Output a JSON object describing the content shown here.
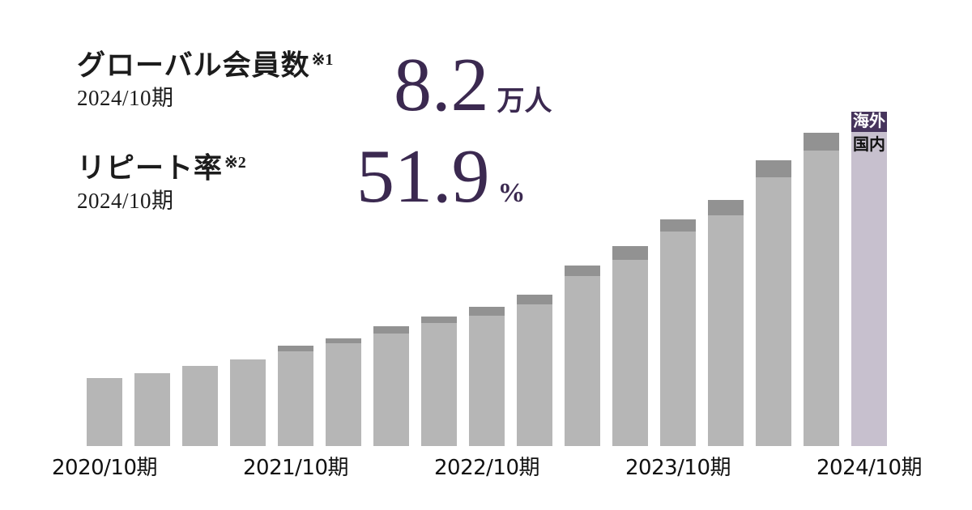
{
  "stats": [
    {
      "label": "グローバル会員数",
      "ref_mark": "※1",
      "period": "2024/10期",
      "value": "8.2",
      "unit": "万人"
    },
    {
      "label": "リピート率",
      "ref_mark": "※2",
      "period": "2024/10期",
      "value": "51.9",
      "unit": "%"
    }
  ],
  "colors": {
    "background": "#ffffff",
    "heading_text": "#1c1c1c",
    "value_text": "#3b2950",
    "axis_text": "#111111",
    "domestic_bar": "#b6b6b6",
    "overseas_bar": "#929292",
    "domestic_bar_highlight": "#c7c0ce",
    "overseas_bar_highlight": "#46345c",
    "legend_overseas_text": "#ffffff",
    "legend_domestic_text": "#111111"
  },
  "chart_data": {
    "type": "bar",
    "stacked": true,
    "unit": "万人",
    "x_tick_labels": [
      "2020/10期",
      "2021/10期",
      "2022/10期",
      "2023/10期",
      "2024/10期"
    ],
    "x_tick_bar_indices": [
      0,
      4,
      8,
      12,
      16
    ],
    "series": [
      {
        "name": "国内",
        "values": [
          1.67,
          1.79,
          1.96,
          2.13,
          2.32,
          2.52,
          2.75,
          3.01,
          3.19,
          3.48,
          4.16,
          4.57,
          5.26,
          5.65,
          6.59,
          7.24,
          7.7
        ]
      },
      {
        "name": "海外",
        "values": [
          0,
          0,
          0,
          0,
          0.14,
          0.12,
          0.18,
          0.16,
          0.22,
          0.24,
          0.26,
          0.34,
          0.3,
          0.38,
          0.42,
          0.44,
          0.5
        ]
      }
    ],
    "totals": [
      1.67,
      1.79,
      1.96,
      2.13,
      2.46,
      2.64,
      2.93,
      3.17,
      3.41,
      3.72,
      4.42,
      4.91,
      5.56,
      6.03,
      7.01,
      7.68,
      8.2
    ],
    "highlight_index": 16,
    "ylim": [
      0,
      8.5
    ],
    "grid": false,
    "legend_position": "on-highlight-bar",
    "legend": {
      "overseas": "海外",
      "domestic": "国内"
    }
  }
}
